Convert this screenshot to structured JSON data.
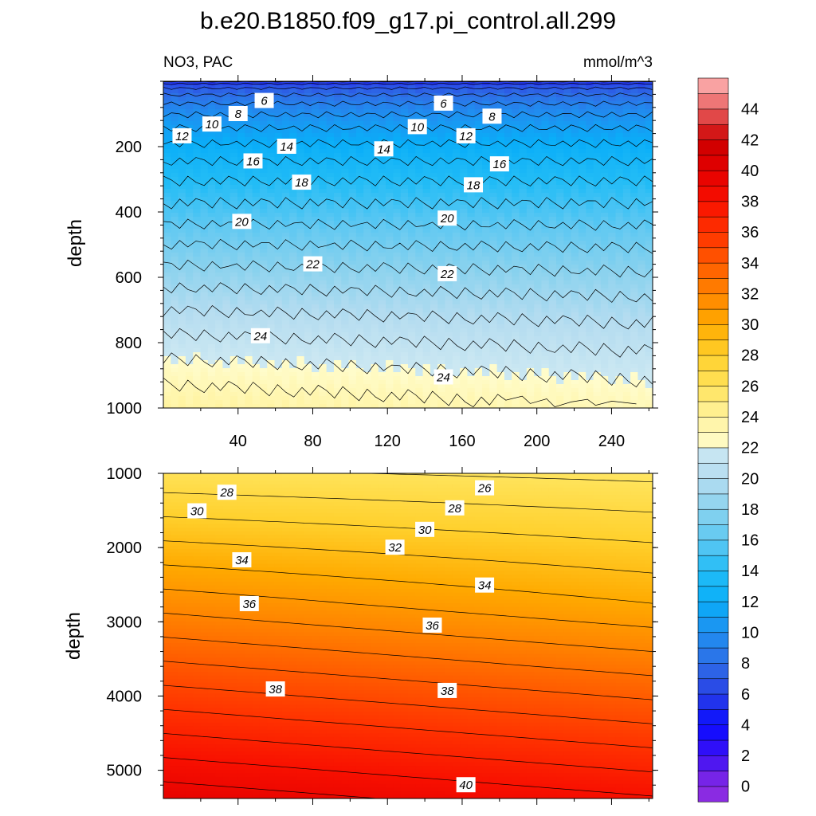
{
  "title": "b.e20.B1850.f09_g17.pi_control.all.299",
  "chart_data": {
    "type": "contour",
    "variable": "NO3",
    "region": "PAC",
    "units": "mmol/m^3",
    "title": "b.e20.B1850.f09_g17.pi_control.all.299",
    "left_label": "NO3, PAC",
    "right_label": "mmol/m^3",
    "ylabel": "depth",
    "colorbar": {
      "levels": [
        0,
        2,
        4,
        6,
        8,
        10,
        12,
        14,
        16,
        18,
        20,
        22,
        24,
        26,
        28,
        30,
        32,
        34,
        36,
        38,
        40,
        42,
        44
      ],
      "tick_labels": [
        "0",
        "2",
        "4",
        "6",
        "8",
        "10",
        "12",
        "14",
        "16",
        "18",
        "20",
        "22",
        "24",
        "26",
        "28",
        "30",
        "32",
        "34",
        "36",
        "38",
        "40",
        "42",
        "44"
      ],
      "colors": [
        "#8a2be2",
        "#6a2be8",
        "#4a1ef0",
        "#2a0cff",
        "#0a0cff",
        "#1428f0",
        "#2840e6",
        "#3456e0",
        "#2e6ee6",
        "#3a86ec",
        "#1a9cf2",
        "#0aaef8",
        "#22bcf6",
        "#48c6f2",
        "#6cd0f0",
        "#8ad2ee",
        "#a2d8ee",
        "#b8e0f0",
        "#cce8f2",
        "#fffccc",
        "#fff6aa",
        "#fff08a",
        "#ffe66a",
        "#ffdc4a",
        "#ffd02c",
        "#ffc418",
        "#ffaa00",
        "#ff9a00",
        "#ff8400",
        "#ff6e00",
        "#ff5a00",
        "#ff4600",
        "#ff3200",
        "#ff1e00",
        "#f81000",
        "#ee0000",
        "#e40000",
        "#d80000",
        "#cc0000",
        "#d82020",
        "#e04040",
        "#e86060",
        "#f08080",
        "#f8a0a0",
        "#ffb8b8"
      ]
    },
    "top_panel": {
      "xlim": [
        0,
        262
      ],
      "ylim": [
        1000,
        0
      ],
      "xticks": [
        40,
        80,
        120,
        160,
        200,
        240
      ],
      "xtick_labels": [
        "40",
        "80",
        "120",
        "160",
        "200",
        "240"
      ],
      "yticks": [
        200,
        400,
        600,
        800,
        1000
      ],
      "ytick_labels": [
        "200",
        "400",
        "600",
        "800",
        "1000"
      ],
      "contour_labels": [
        {
          "text": "6",
          "x": 54,
          "y": 60
        },
        {
          "text": "8",
          "x": 40,
          "y": 100
        },
        {
          "text": "10",
          "x": 26,
          "y": 132
        },
        {
          "text": "12",
          "x": 10,
          "y": 168
        },
        {
          "text": "14",
          "x": 66,
          "y": 200
        },
        {
          "text": "16",
          "x": 48,
          "y": 245
        },
        {
          "text": "18",
          "x": 74,
          "y": 310
        },
        {
          "text": "20",
          "x": 42,
          "y": 430
        },
        {
          "text": "22",
          "x": 80,
          "y": 560
        },
        {
          "text": "24",
          "x": 52,
          "y": 780
        },
        {
          "text": "6",
          "x": 150,
          "y": 68
        },
        {
          "text": "8",
          "x": 176,
          "y": 108
        },
        {
          "text": "10",
          "x": 136,
          "y": 140
        },
        {
          "text": "12",
          "x": 162,
          "y": 168
        },
        {
          "text": "14",
          "x": 118,
          "y": 208
        },
        {
          "text": "16",
          "x": 180,
          "y": 254
        },
        {
          "text": "18",
          "x": 166,
          "y": 318
        },
        {
          "text": "20",
          "x": 152,
          "y": 420
        },
        {
          "text": "22",
          "x": 152,
          "y": 590
        },
        {
          "text": "24",
          "x": 150,
          "y": 906
        }
      ]
    },
    "bottom_panel": {
      "xlim": [
        0,
        262
      ],
      "ylim": [
        5380,
        1000
      ],
      "yticks": [
        1000,
        2000,
        3000,
        4000,
        5000
      ],
      "ytick_labels": [
        "1000",
        "2000",
        "3000",
        "4000",
        "5000"
      ],
      "contour_labels": [
        {
          "text": "28",
          "x": 34,
          "y": 1260
        },
        {
          "text": "30",
          "x": 18,
          "y": 1510
        },
        {
          "text": "34",
          "x": 42,
          "y": 2170
        },
        {
          "text": "36",
          "x": 46,
          "y": 2760
        },
        {
          "text": "38",
          "x": 60,
          "y": 3910
        },
        {
          "text": "26",
          "x": 172,
          "y": 1200
        },
        {
          "text": "28",
          "x": 156,
          "y": 1470
        },
        {
          "text": "30",
          "x": 140,
          "y": 1760
        },
        {
          "text": "32",
          "x": 124,
          "y": 2000
        },
        {
          "text": "34",
          "x": 172,
          "y": 2510
        },
        {
          "text": "36",
          "x": 144,
          "y": 3050
        },
        {
          "text": "38",
          "x": 152,
          "y": 3930
        },
        {
          "text": "40",
          "x": 162,
          "y": 5200
        }
      ]
    }
  }
}
